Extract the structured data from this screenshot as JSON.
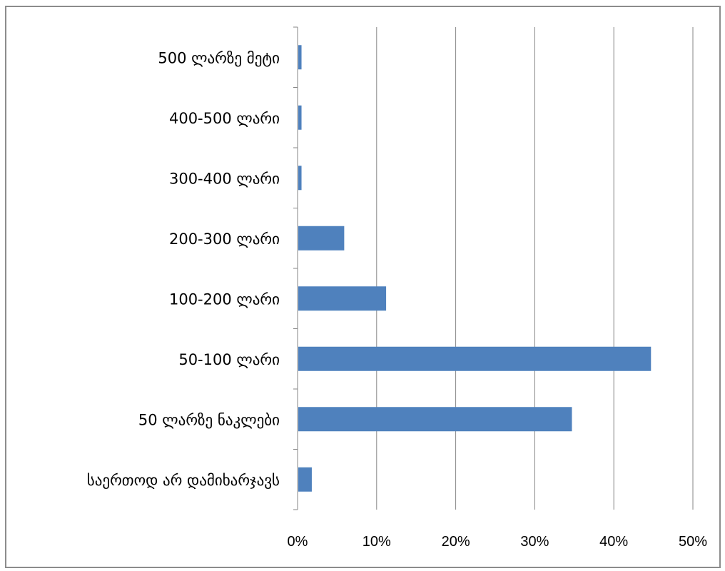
{
  "chart_data": {
    "type": "bar",
    "orientation": "horizontal",
    "categories": [
      "500 ლარზე მეტი",
      "400-500 ლარი",
      "300-400 ლარი",
      "200-300 ლარი",
      "100-200 ლარი",
      "50-100 ლარი",
      "50 ლარზე ნაკლები",
      "საერთოდ არ დამიხარჯავს"
    ],
    "values": [
      0.5,
      0.5,
      0.5,
      5.9,
      11.2,
      44.7,
      34.7,
      1.8
    ],
    "xlim": [
      0,
      50
    ],
    "x_ticks": [
      0,
      10,
      20,
      30,
      40,
      50
    ],
    "x_tick_labels": [
      "0%",
      "10%",
      "20%",
      "30%",
      "40%",
      "50%"
    ],
    "gridlines": "vertical",
    "legend": "none",
    "colors": {
      "bar": "#4f81bd",
      "grid": "#868686",
      "axis": "#868686",
      "frame": "#8c8c8c"
    }
  }
}
